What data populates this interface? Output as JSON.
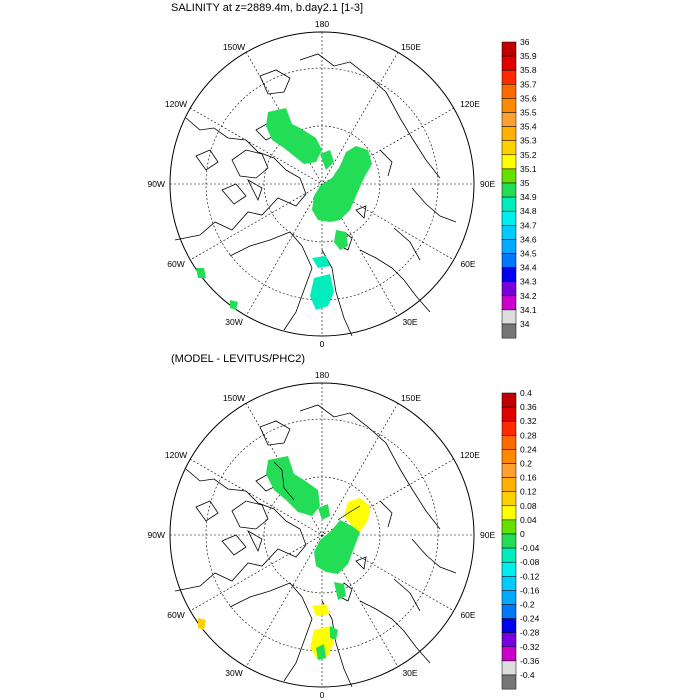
{
  "panels": [
    {
      "title": "SALINITY at z=2889.4m, b.day2.1 [1-3]",
      "colorbar": {
        "labels": [
          "36",
          "35.9",
          "35.8",
          "35.7",
          "35.6",
          "35.5",
          "35.4",
          "35.3",
          "35.2",
          "35.1",
          "35",
          "34.9",
          "34.8",
          "34.7",
          "34.6",
          "34.5",
          "34.4",
          "34.3",
          "34.2",
          "34.1",
          "34"
        ]
      }
    },
    {
      "title": "(MODEL - LEVITUS/PHC2)",
      "colorbar": {
        "labels": [
          "0.4",
          "0.36",
          "0.32",
          "0.28",
          "0.24",
          "0.2",
          "0.16",
          "0.12",
          "0.08",
          "0.04",
          "0",
          "-0.04",
          "-0.08",
          "-0.12",
          "-0.16",
          "-0.2",
          "-0.24",
          "-0.28",
          "-0.32",
          "-0.36",
          "-0.4"
        ]
      }
    }
  ],
  "colors": [
    "#c00000",
    "#e00000",
    "#ff2a00",
    "#ff6a00",
    "#ff8a00",
    "#ffa030",
    "#ffb000",
    "#ffd000",
    "#ffff00",
    "#66e000",
    "#22dd55",
    "#00eebb",
    "#00eeee",
    "#00ccff",
    "#00aaff",
    "#0077ff",
    "#0000ee",
    "#7700dd",
    "#cc00cc",
    "#dddddd",
    "#777777"
  ],
  "longitude_labels": {
    "top": "180",
    "bottom": "0",
    "left": "90W",
    "right": "90E",
    "upper_left_1": "150W",
    "upper_left_2": "120W",
    "upper_right_1": "150E",
    "upper_right_2": "120E",
    "lower_left_1": "60W",
    "lower_left_2": "30W",
    "lower_right_1": "60E",
    "lower_right_2": "30E"
  }
}
